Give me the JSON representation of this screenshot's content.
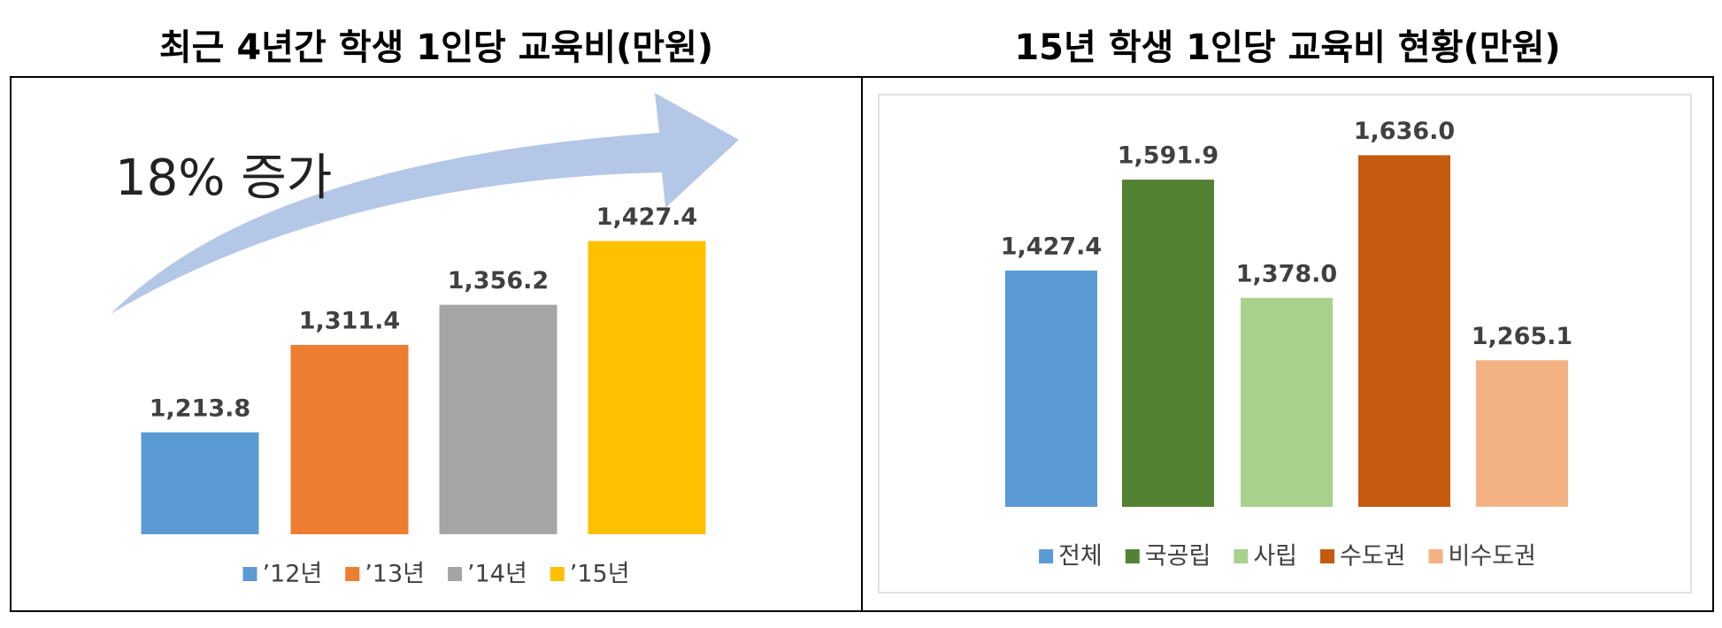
{
  "chart_data": [
    {
      "type": "bar",
      "title": "최근 4년간 학생 1인당 교육비(만원)",
      "annotation": "18% 증가",
      "categories": [
        "’12년",
        "’13년",
        "’14년",
        "’15년"
      ],
      "values": [
        1213.8,
        1311.4,
        1356.2,
        1427.4
      ],
      "value_labels": [
        "1,213.8",
        "1,311.4",
        "1,356.2",
        "1,427.4"
      ],
      "colors": [
        "#5b9bd5",
        "#ed7d31",
        "#a5a5a5",
        "#ffc000"
      ],
      "ylim": [
        1100,
        1500
      ],
      "legend": "bottom"
    },
    {
      "type": "bar",
      "title": "15년 학생 1인당 교육비 현황(만원)",
      "categories": [
        "전체",
        "국공립",
        "사립",
        "수도권",
        "비수도권"
      ],
      "values": [
        1427.4,
        1591.9,
        1378.0,
        1636.0,
        1265.1
      ],
      "value_labels": [
        "1,427.4",
        "1,591.9",
        "1,378.0",
        "1,636.0",
        "1,265.1"
      ],
      "colors": [
        "#5b9bd5",
        "#548235",
        "#a9d18e",
        "#c55a11",
        "#f4b183"
      ],
      "ylim": [
        1000,
        1800
      ],
      "legend": "bottom"
    }
  ]
}
